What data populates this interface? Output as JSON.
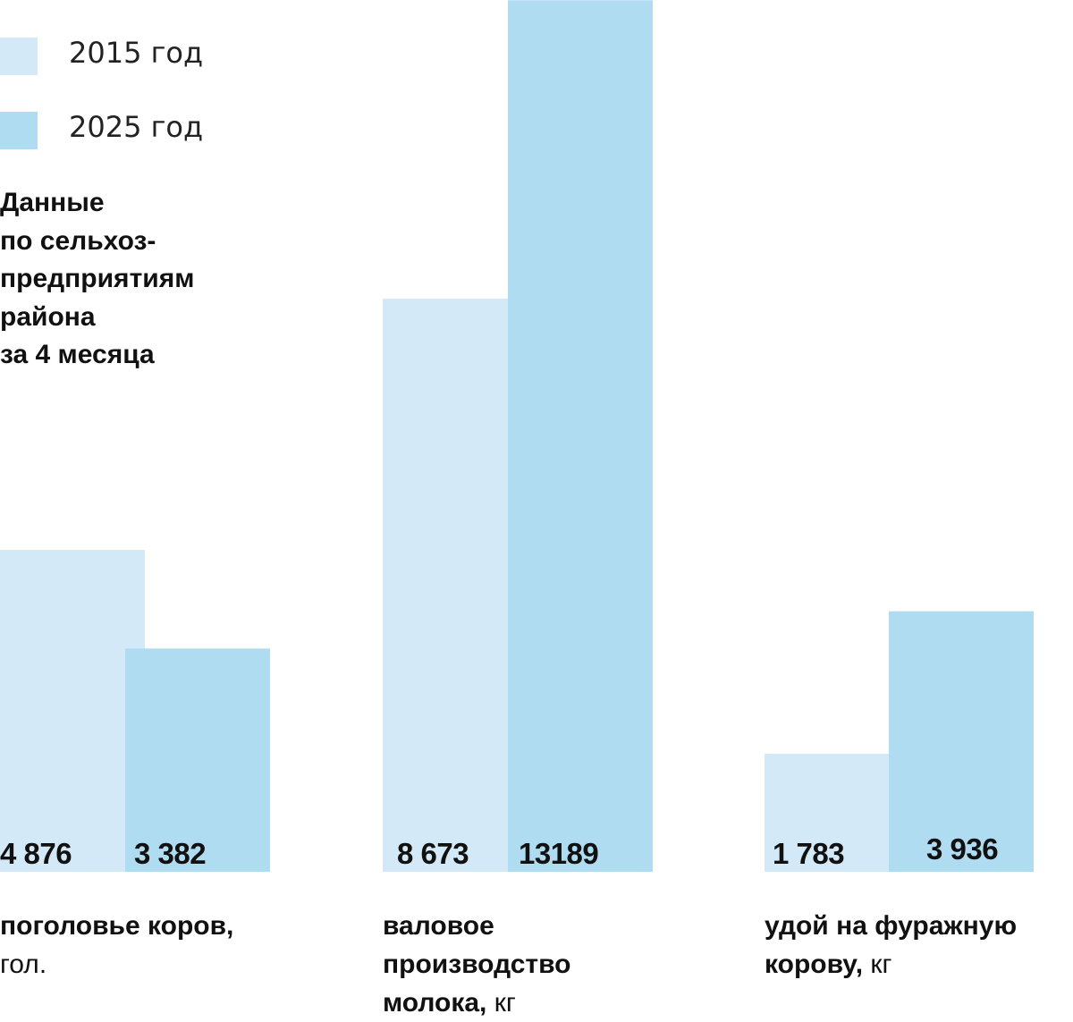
{
  "title_lines": [
    "Данные",
    "по сельхоз-",
    "предприятиям",
    "района",
    "за 4 месяца"
  ],
  "colors": {
    "series_2015": "#d4e9f7",
    "series_2025": "#b0dcf2"
  },
  "legend": [
    {
      "label": "2015 год",
      "color": "#d4e9f7"
    },
    {
      "label": "2025 год",
      "color": "#b0dcf2"
    }
  ],
  "categories": [
    {
      "lines": [
        {
          "bold": "поголовье коров,",
          "unit": ""
        },
        {
          "bold": "",
          "unit": "гол."
        }
      ]
    },
    {
      "lines": [
        {
          "bold": "валовое",
          "unit": ""
        },
        {
          "bold": "производство",
          "unit": ""
        },
        {
          "bold": "молока,",
          "unit": " кг"
        }
      ]
    },
    {
      "lines": [
        {
          "bold": "удой на фуражную",
          "unit": ""
        },
        {
          "bold": "корову,",
          "unit": " кг"
        }
      ]
    }
  ],
  "chart_data": {
    "type": "bar",
    "categories": [
      "поголовье коров, гол.",
      "валовое производство молока, кг",
      "удой на фуражную корову, кг"
    ],
    "series": [
      {
        "name": "2015 год",
        "values": [
          4876,
          8673,
          1783
        ],
        "labels": [
          "4 876",
          "8 673",
          "1 783"
        ]
      },
      {
        "name": "2025 год",
        "values": [
          3382,
          13189,
          3936
        ],
        "labels": [
          "3 382",
          "13189",
          "3 936"
        ]
      }
    ],
    "legend_position": "top-left",
    "grid": false
  }
}
